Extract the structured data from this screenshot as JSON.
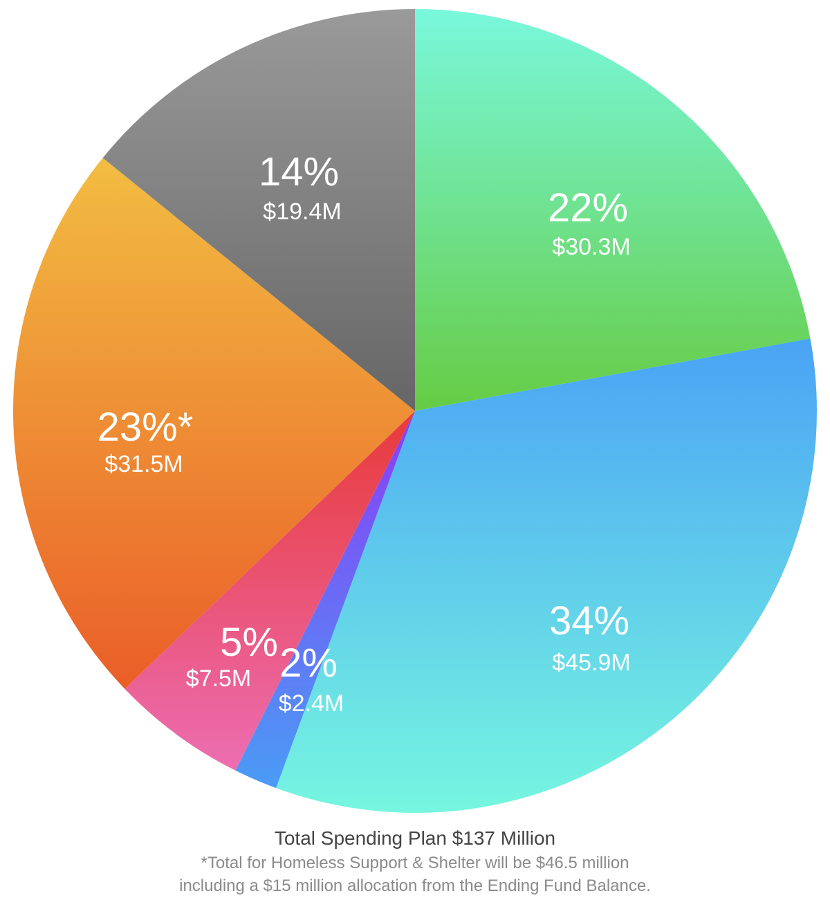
{
  "chart_data": {
    "type": "pie",
    "title": "Total Spending Plan $137 Million",
    "unit": "$M",
    "start": "top, clockwise",
    "slices": [
      {
        "percent_label": "22%",
        "value_label": "$30.3M",
        "value": 30.3,
        "colors": [
          "#79f8dc",
          "#66cc44"
        ]
      },
      {
        "percent_label": "34%",
        "value_label": "$45.9M",
        "value": 45.9,
        "colors": [
          "#4aa3f5",
          "#76f6e0"
        ]
      },
      {
        "percent_label": "2%",
        "value_label": "$2.4M",
        "value": 2.4,
        "colors": [
          "#8a3cf5",
          "#4a9cf5"
        ]
      },
      {
        "percent_label": "5%",
        "value_label": "$7.5M",
        "value": 7.5,
        "colors": [
          "#e83a3a",
          "#ec6eb2"
        ]
      },
      {
        "percent_label": "23%*",
        "value_label": "$31.5M",
        "value": 31.5,
        "colors": [
          "#f2bd42",
          "#ea5e28"
        ]
      },
      {
        "percent_label": "14%",
        "value_label": "$19.4M",
        "value": 19.4,
        "colors": [
          "#9a9a9a",
          "#666666"
        ]
      }
    ],
    "notes": [
      "*Total for Homeless Support & Shelter will be $46.5 million",
      "including a $15 million allocation from the Ending Fund Balance."
    ]
  }
}
